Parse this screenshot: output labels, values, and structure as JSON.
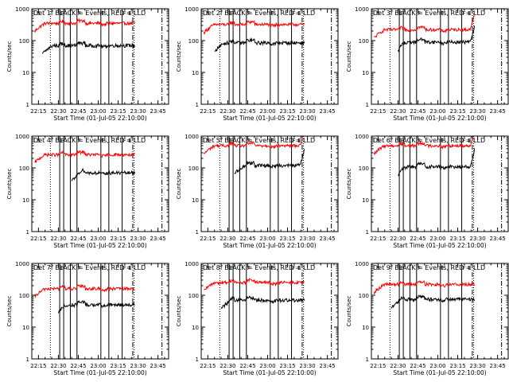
{
  "chart_data": {
    "type": "line",
    "layout": {
      "rows": 3,
      "cols": 3
    },
    "x_tick_labels": [
      "22:15",
      "22:30",
      "22:45",
      "23:00",
      "23:15",
      "23:30",
      "23:45"
    ],
    "x_ticks_minutes_from_2200": [
      15,
      30,
      45,
      60,
      75,
      90,
      105
    ],
    "xlim_minutes_from_2200": [
      10,
      113
    ],
    "xlabel": "Start Time (01-Jul-05 22:10:00)",
    "ylabel": "Counts/sec",
    "y_scale": "log",
    "ylim": [
      1,
      1000
    ],
    "y_tick_labels": [
      "1",
      "10",
      "100",
      "1000"
    ],
    "y_tick_values": [
      1,
      10,
      100,
      1000
    ],
    "line_colors": {
      "events": "#000000",
      "lld": "#ff0000"
    },
    "markers": {
      "solid": [
        31,
        34,
        39,
        44,
        62,
        68,
        78
      ],
      "dotted": [
        24,
        87
      ],
      "dashdot": [
        86,
        108
      ]
    },
    "marker_labels": [
      {
        "text": "S",
        "at": 13
      },
      {
        "text": "F",
        "at": 31
      },
      {
        "text": "F",
        "at": 44
      },
      {
        "text": "F",
        "at": 62
      },
      {
        "text": "F",
        "at": 78
      },
      {
        "text": "E",
        "at": 82
      }
    ],
    "panels": [
      {
        "title": "Det 1f BLACK = Events, RED = LLD",
        "lld_level": 350,
        "events_level": 70,
        "events_start": 18,
        "rise": false
      },
      {
        "title": "Det 2f BLACK = Events, RED = LLD",
        "lld_level": 320,
        "events_level": 85,
        "events_start": 20,
        "rise": false
      },
      {
        "title": "Det 3f BLACK = Events, RED = LLD",
        "lld_level": 220,
        "events_level": 90,
        "events_start": 30,
        "rise": true
      },
      {
        "title": "Det 4f BLACK = Events, RED = LLD",
        "lld_level": 260,
        "events_level": 70,
        "events_start": 40,
        "rise": false
      },
      {
        "title": "Det 5f BLACK = Events, RED = LLD",
        "lld_level": 500,
        "events_level": 120,
        "events_start": 35,
        "rise": true
      },
      {
        "title": "Det 6f BLACK = Events, RED = LLD",
        "lld_level": 500,
        "events_level": 110,
        "events_start": 30,
        "rise": true
      },
      {
        "title": "Det 7f BLACK = Events, RED = LLD",
        "lld_level": 160,
        "events_level": 50,
        "events_start": 30,
        "rise": false
      },
      {
        "title": "Det 8f BLACK = Events, RED = LLD",
        "lld_level": 250,
        "events_level": 70,
        "events_start": 25,
        "rise": false
      },
      {
        "title": "Det 9f BLACK = Events, RED = LLD",
        "lld_level": 220,
        "events_level": 75,
        "events_start": 25,
        "rise": false
      }
    ]
  }
}
